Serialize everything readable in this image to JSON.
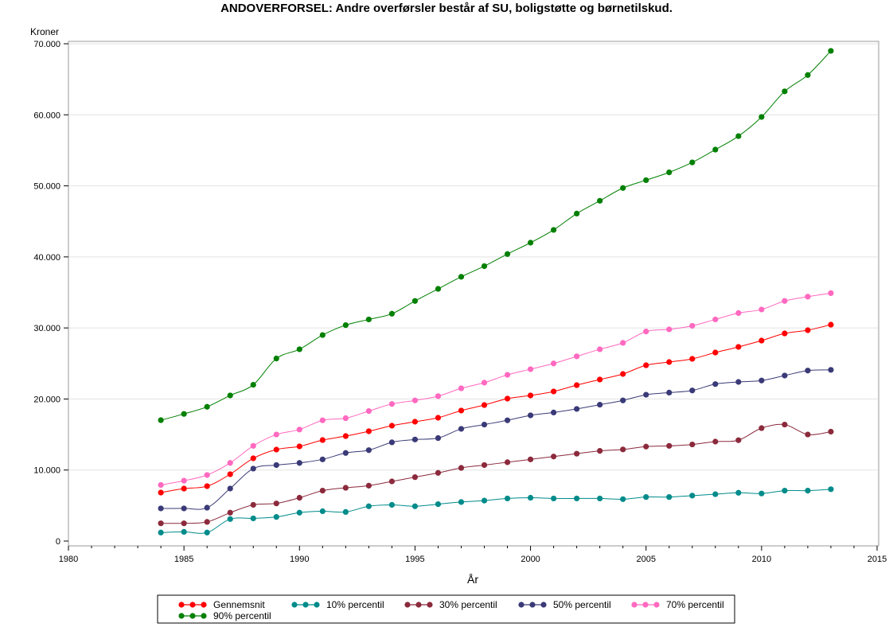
{
  "chart_data": {
    "type": "line",
    "title": "ANDOVERFORSEL: Andre overførsler består af SU, boligstøtte og børnetilskud.",
    "xlabel": "År",
    "ylabel": "Kroner",
    "xlim": [
      1980,
      2015
    ],
    "ylim": [
      0,
      70000
    ],
    "xticks": [
      1980,
      1985,
      1990,
      1995,
      2000,
      2005,
      2010,
      2015
    ],
    "yticks": [
      0,
      10000,
      20000,
      30000,
      40000,
      50000,
      60000,
      70000
    ],
    "ytick_labels": [
      "0",
      "10.000",
      "20.000",
      "30.000",
      "40.000",
      "50.000",
      "60.000",
      "70.000"
    ],
    "grid": "horizontal",
    "legend_position": "bottom",
    "x": [
      1984,
      1985,
      1986,
      1987,
      1988,
      1989,
      1990,
      1991,
      1992,
      1993,
      1994,
      1995,
      1996,
      1997,
      1998,
      1999,
      2000,
      2001,
      2002,
      2003,
      2004,
      2005,
      2006,
      2007,
      2008,
      2009,
      2010,
      2011,
      2012,
      2013
    ],
    "series": [
      {
        "name": "Gennemsnit",
        "color": "#ff0000",
        "values": [
          6830,
          7390,
          7730,
          9410,
          11650,
          12880,
          13330,
          14220,
          14780,
          15460,
          16240,
          16800,
          17360,
          18370,
          19150,
          20050,
          20500,
          21060,
          21950,
          22740,
          23520,
          24750,
          25200,
          25650,
          26540,
          27330,
          28220,
          29230,
          29680,
          30460
        ]
      },
      {
        "name": "10% percentil",
        "color": "#008b8b",
        "values": [
          1200,
          1300,
          1200,
          3100,
          3200,
          3400,
          4000,
          4200,
          4100,
          4900,
          5100,
          4900,
          5200,
          5500,
          5700,
          6000,
          6100,
          6000,
          6000,
          6000,
          5900,
          6200,
          6200,
          6400,
          6600,
          6800,
          6700,
          7100,
          7100,
          7300
        ]
      },
      {
        "name": "30% percentil",
        "color": "#8b2a3c",
        "values": [
          2500,
          2500,
          2700,
          4000,
          5100,
          5300,
          6100,
          7100,
          7500,
          7800,
          8400,
          9000,
          9600,
          10300,
          10700,
          11100,
          11500,
          11900,
          12300,
          12700,
          12900,
          13300,
          13400,
          13600,
          14000,
          14200,
          15900,
          16400,
          15000,
          15400
        ]
      },
      {
        "name": "50% percentil",
        "color": "#3a3a78",
        "values": [
          4600,
          4600,
          4700,
          7400,
          10200,
          10700,
          11000,
          11500,
          12400,
          12800,
          13900,
          14300,
          14500,
          15800,
          16400,
          17000,
          17700,
          18100,
          18600,
          19200,
          19800,
          20600,
          20900,
          21200,
          22100,
          22400,
          22600,
          23300,
          24000,
          24100
        ]
      },
      {
        "name": "70% percentil",
        "color": "#ff69c0",
        "values": [
          7900,
          8500,
          9300,
          11000,
          13400,
          15000,
          15700,
          17000,
          17300,
          18300,
          19300,
          19800,
          20400,
          21500,
          22300,
          23400,
          24200,
          25000,
          26000,
          27000,
          27900,
          29500,
          29800,
          30300,
          31200,
          32100,
          32600,
          33800,
          34400,
          34900
        ]
      },
      {
        "name": "90% percentil",
        "color": "#008000",
        "values": [
          17020,
          17900,
          18900,
          20500,
          22000,
          25700,
          27000,
          29000,
          30400,
          31200,
          32000,
          33800,
          35500,
          37200,
          38700,
          40400,
          42000,
          43800,
          46100,
          47900,
          49700,
          50800,
          51900,
          53300,
          55100,
          57000,
          59700,
          63300,
          65600,
          69000
        ]
      }
    ]
  }
}
